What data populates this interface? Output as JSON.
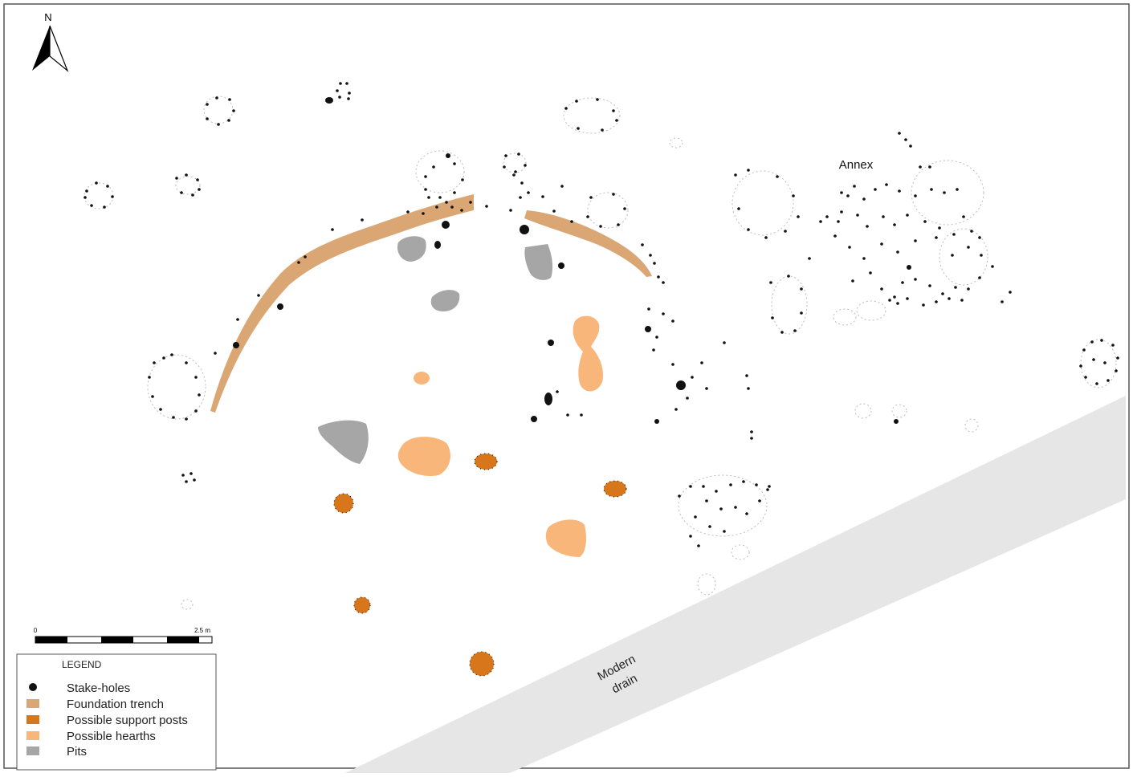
{
  "map": {
    "north_label": "N",
    "annex_label": "Annex",
    "drain_label_line1": "Modern",
    "drain_label_line2": "drain"
  },
  "scale_bar": {
    "start_label": "0",
    "end_label": "2.5 m"
  },
  "legend": {
    "title": "LEGEND",
    "items": [
      {
        "label": "Stake-holes",
        "color": "#111111",
        "shape": "dot"
      },
      {
        "label": "Foundation trench",
        "color": "#d9a674",
        "shape": "square"
      },
      {
        "label": "Possible support posts",
        "color": "#d8761c",
        "shape": "square"
      },
      {
        "label": "Possible hearths",
        "color": "#f9b67a",
        "shape": "square"
      },
      {
        "label": "Pits",
        "color": "#a6a6a6",
        "shape": "square"
      }
    ]
  },
  "colors": {
    "trench": "#d9a674",
    "support_post": "#d8761c",
    "hearth": "#f9b67a",
    "pit": "#a6a6a6",
    "drain": "#e6e6e6",
    "stake_hole": "#111111"
  }
}
